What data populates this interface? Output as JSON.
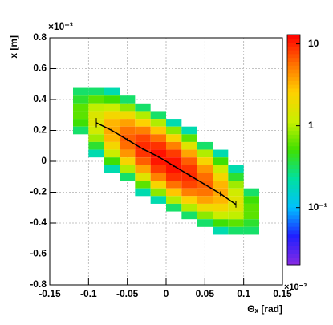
{
  "chart_data": {
    "type": "heatmap",
    "xlabel": "Θₓ [rad]",
    "ylabel": "x [m]",
    "x_exponent": "×10⁻³",
    "y_exponent": "×10⁻³",
    "xlim": [
      -0.15,
      0.15
    ],
    "ylim": [
      -0.8,
      0.8
    ],
    "xticks": [
      -0.15,
      -0.1,
      -0.05,
      0,
      0.05,
      0.1,
      0.15
    ],
    "yticks": [
      -0.8,
      -0.6,
      -0.4,
      -0.2,
      0,
      0.2,
      0.4,
      0.6,
      0.8
    ],
    "grid": true,
    "zlog": true,
    "zlim": [
      0.02,
      13
    ],
    "zticks": [
      {
        "value": 0.1,
        "label": "10⁻¹"
      },
      1,
      10
    ],
    "colorscale": [
      "#8a2be2",
      "#2020ff",
      "#00c0ff",
      "#00e0a0",
      "#40e000",
      "#c8f000",
      "#ffd000",
      "#ff7000",
      "#ff0000"
    ],
    "x": [
      -0.11,
      -0.09,
      -0.07,
      -0.05,
      -0.03,
      -0.01,
      0.01,
      0.03,
      0.05,
      0.07,
      0.09,
      0.11
    ],
    "y": [
      0.45,
      0.4,
      0.35,
      0.3,
      0.25,
      0.2,
      0.15,
      0.1,
      0.05,
      0,
      -0.05,
      -0.1,
      -0.15,
      -0.2,
      -0.25,
      -0.3,
      -0.35,
      -0.4,
      -0.45
    ],
    "z": [
      [
        0.3,
        0.3,
        0.2,
        null,
        null,
        null,
        null,
        null,
        null,
        null,
        null,
        null
      ],
      [
        0.4,
        0.6,
        0.5,
        0.3,
        null,
        null,
        null,
        null,
        null,
        null,
        null,
        null
      ],
      [
        0.6,
        1.1,
        1.2,
        0.8,
        0.3,
        null,
        null,
        null,
        null,
        null,
        null,
        null
      ],
      [
        0.6,
        1.5,
        2.2,
        2.0,
        1.0,
        0.3,
        null,
        null,
        null,
        null,
        null,
        null
      ],
      [
        0.5,
        1.6,
        3.2,
        3.8,
        2.5,
        1.0,
        0.2,
        null,
        null,
        null,
        null,
        null
      ],
      [
        0.3,
        1.3,
        3.6,
        5.6,
        5.1,
        2.8,
        0.8,
        0.2,
        null,
        null,
        null,
        null
      ],
      [
        null,
        0.9,
        3.2,
        6.5,
        7.9,
        5.7,
        2.3,
        0.6,
        null,
        null,
        null,
        null
      ],
      [
        null,
        0.4,
        2.2,
        5.9,
        9.5,
        9.1,
        5.0,
        1.6,
        0.3,
        null,
        null,
        null
      ],
      [
        null,
        0.2,
        1.2,
        4.2,
        8.9,
        11.5,
        8.5,
        3.7,
        1.0,
        0.2,
        null,
        null
      ],
      [
        null,
        null,
        0.5,
        2.3,
        6.6,
        11.2,
        11.2,
        6.6,
        2.3,
        0.5,
        null,
        null
      ],
      [
        null,
        null,
        0.2,
        1.0,
        3.7,
        8.5,
        11.5,
        8.9,
        4.2,
        1.2,
        0.2,
        null
      ],
      [
        null,
        null,
        null,
        0.3,
        1.6,
        5.0,
        9.1,
        9.5,
        5.9,
        2.2,
        0.4,
        null
      ],
      [
        null,
        null,
        null,
        null,
        0.6,
        2.3,
        5.7,
        7.9,
        6.5,
        3.2,
        0.9,
        null
      ],
      [
        null,
        null,
        null,
        null,
        0.2,
        0.8,
        2.8,
        5.1,
        5.6,
        3.6,
        1.3,
        0.3
      ],
      [
        null,
        null,
        null,
        null,
        null,
        0.2,
        1.0,
        2.5,
        3.8,
        3.2,
        1.6,
        0.5
      ],
      [
        null,
        null,
        null,
        null,
        null,
        null,
        0.3,
        1.0,
        2.0,
        2.2,
        1.5,
        0.6
      ],
      [
        null,
        null,
        null,
        null,
        null,
        null,
        null,
        0.3,
        0.8,
        1.2,
        1.1,
        0.6
      ],
      [
        null,
        null,
        null,
        null,
        null,
        null,
        null,
        null,
        0.3,
        0.5,
        0.6,
        0.4
      ],
      [
        null,
        null,
        null,
        null,
        null,
        null,
        null,
        null,
        null,
        0.2,
        0.3,
        0.3
      ]
    ],
    "profile": {
      "color": "#000000",
      "x": [
        -0.09,
        -0.07,
        -0.05,
        -0.03,
        -0.01,
        0.01,
        0.03,
        0.05,
        0.07,
        0.09
      ],
      "values": [
        0.25,
        0.2,
        0.14,
        0.08,
        0.03,
        -0.03,
        -0.09,
        -0.15,
        -0.21,
        -0.28
      ],
      "errors": [
        0.03,
        0.015,
        0.01,
        0.008,
        0.007,
        0.007,
        0.008,
        0.01,
        0.015,
        0.02
      ]
    }
  }
}
